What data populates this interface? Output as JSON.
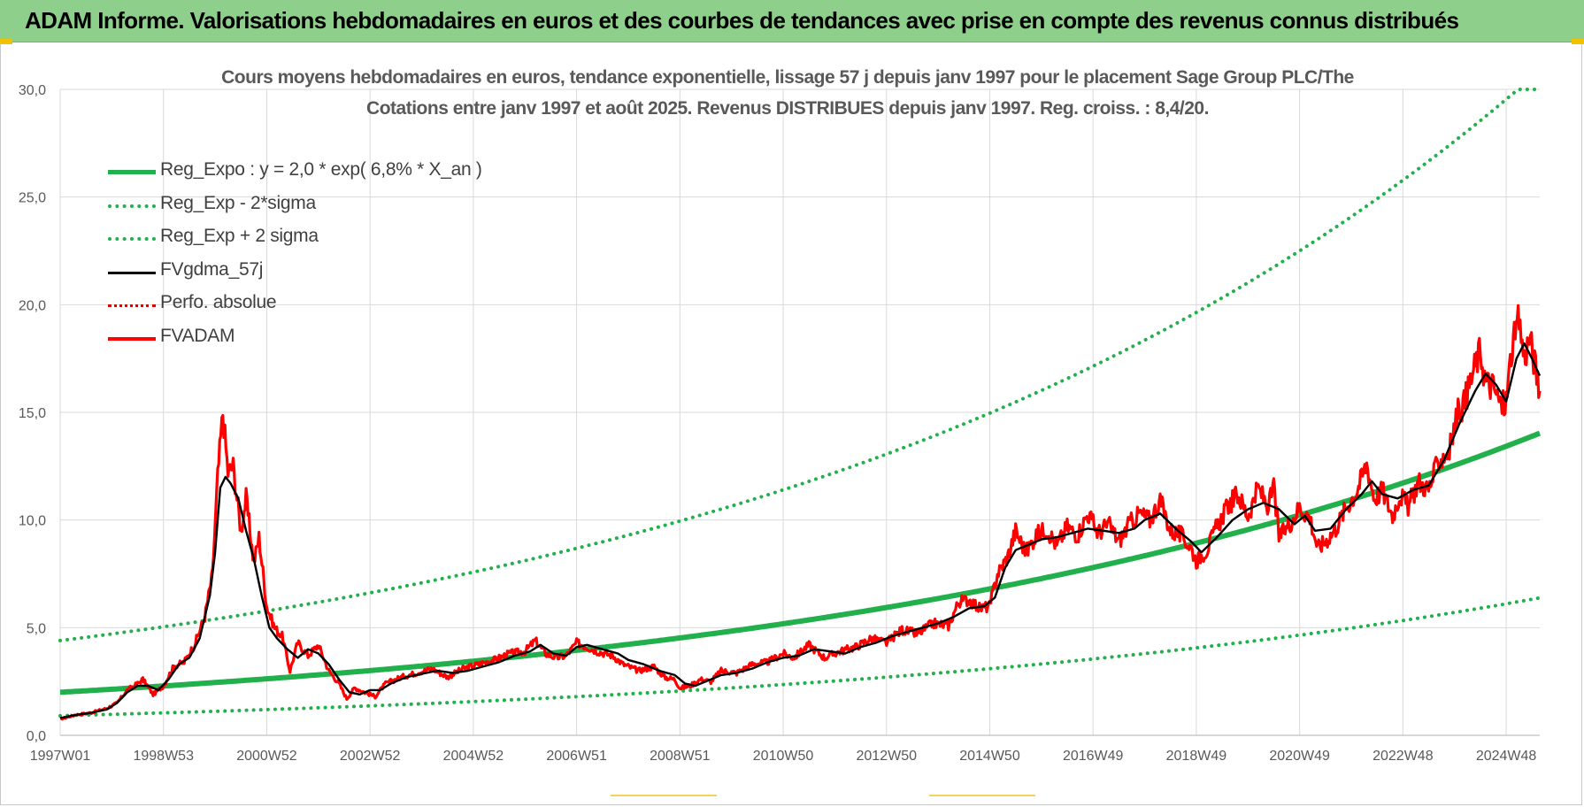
{
  "header": {
    "title": "ADAM Informe. Valorisations hebdomadaires en euros et des courbes de tendances avec prise en compte des revenus connus distribués"
  },
  "colors": {
    "banner": "#8ed08b",
    "trend": "#22b04c",
    "sigma": "#22b04c",
    "fvgdma": "#000000",
    "perfo": "#e00000",
    "fvadam": "#ff0000",
    "grid": "#d9d9d9",
    "axis_text": "#595959"
  },
  "chart_data": {
    "type": "line",
    "title_lines": [
      "Cours moyens hebdomadaires en euros, tendance exponentielle, lissage 57 j depuis janv 1997 pour le placement Sage Group PLC/The",
      "Cotations entre janv 1997 et août 2025.  Revenus DISTRIBUES depuis janv 1997. Reg. croiss. : 8,4/20."
    ],
    "ylim": [
      0,
      30
    ],
    "y_ticks": [
      "0,0",
      "5,0",
      "10,0",
      "15,0",
      "20,0",
      "25,0",
      "30,0"
    ],
    "x_range": [
      1997.0,
      2025.65
    ],
    "x_ticks": [
      {
        "label": "1997W01",
        "x": 1997.0
      },
      {
        "label": "1998W53",
        "x": 1999.0
      },
      {
        "label": "2000W52",
        "x": 2001.0
      },
      {
        "label": "2002W52",
        "x": 2003.0
      },
      {
        "label": "2004W52",
        "x": 2005.0
      },
      {
        "label": "2006W51",
        "x": 2007.0
      },
      {
        "label": "2008W51",
        "x": 2009.0
      },
      {
        "label": "2010W50",
        "x": 2011.0
      },
      {
        "label": "2012W50",
        "x": 2013.0
      },
      {
        "label": "2014W50",
        "x": 2015.0
      },
      {
        "label": "2016W49",
        "x": 2017.0
      },
      {
        "label": "2018W49",
        "x": 2019.0
      },
      {
        "label": "2020W49",
        "x": 2021.0
      },
      {
        "label": "2022W48",
        "x": 2023.0
      },
      {
        "label": "2024W48",
        "x": 2025.0
      }
    ],
    "legend_position": "top-left",
    "series": [
      {
        "name": "Reg_Expo : y = 2,0 * exp( 6,8% *  X_an )",
        "style": "solid-thick",
        "trend": {
          "a": 2.0,
          "rate": 0.068,
          "factor": 1.0
        }
      },
      {
        "name": "Reg_Exp - 2*sigma",
        "style": "dotted",
        "trend": {
          "a": 2.0,
          "rate": 0.068,
          "factor": 0.455
        }
      },
      {
        "name": "Reg_Exp + 2 sigma",
        "style": "dotted",
        "trend": {
          "a": 2.0,
          "rate": 0.068,
          "factor": 2.2
        },
        "clip_max": 30
      },
      {
        "name": "FVgdma_57j",
        "style": "solid",
        "points": [
          [
            1997.0,
            0.8
          ],
          [
            1997.3,
            0.95
          ],
          [
            1997.6,
            1.05
          ],
          [
            1997.9,
            1.2
          ],
          [
            1998.1,
            1.5
          ],
          [
            1998.3,
            2.0
          ],
          [
            1998.5,
            2.3
          ],
          [
            1998.7,
            2.3
          ],
          [
            1998.9,
            2.1
          ],
          [
            1999.1,
            2.6
          ],
          [
            1999.3,
            3.3
          ],
          [
            1999.5,
            3.6
          ],
          [
            1999.7,
            4.5
          ],
          [
            1999.9,
            6.5
          ],
          [
            2000.0,
            8.5
          ],
          [
            2000.1,
            11.5
          ],
          [
            2000.2,
            12.0
          ],
          [
            2000.3,
            11.7
          ],
          [
            2000.45,
            11.0
          ],
          [
            2000.6,
            9.5
          ],
          [
            2000.75,
            8.2
          ],
          [
            2000.9,
            6.5
          ],
          [
            2001.05,
            5.0
          ],
          [
            2001.2,
            4.5
          ],
          [
            2001.4,
            4.0
          ],
          [
            2001.6,
            3.6
          ],
          [
            2001.8,
            4.0
          ],
          [
            2002.0,
            3.8
          ],
          [
            2002.2,
            3.3
          ],
          [
            2002.4,
            2.6
          ],
          [
            2002.6,
            2.0
          ],
          [
            2002.8,
            1.9
          ],
          [
            2003.0,
            2.1
          ],
          [
            2003.2,
            2.1
          ],
          [
            2003.4,
            2.4
          ],
          [
            2003.7,
            2.7
          ],
          [
            2004.0,
            2.85
          ],
          [
            2004.3,
            3.0
          ],
          [
            2004.6,
            2.9
          ],
          [
            2004.9,
            3.0
          ],
          [
            2005.2,
            3.2
          ],
          [
            2005.5,
            3.4
          ],
          [
            2005.8,
            3.7
          ],
          [
            2006.1,
            3.9
          ],
          [
            2006.3,
            4.2
          ],
          [
            2006.55,
            3.8
          ],
          [
            2006.8,
            3.7
          ],
          [
            2007.0,
            4.1
          ],
          [
            2007.2,
            4.2
          ],
          [
            2007.5,
            4.0
          ],
          [
            2007.8,
            3.8
          ],
          [
            2008.0,
            3.5
          ],
          [
            2008.3,
            3.3
          ],
          [
            2008.6,
            3.0
          ],
          [
            2008.9,
            2.8
          ],
          [
            2009.1,
            2.4
          ],
          [
            2009.3,
            2.3
          ],
          [
            2009.5,
            2.5
          ],
          [
            2009.8,
            2.8
          ],
          [
            2010.1,
            2.9
          ],
          [
            2010.4,
            3.1
          ],
          [
            2010.7,
            3.4
          ],
          [
            2011.0,
            3.6
          ],
          [
            2011.3,
            3.7
          ],
          [
            2011.6,
            4.0
          ],
          [
            2011.9,
            3.9
          ],
          [
            2012.2,
            3.8
          ],
          [
            2012.5,
            4.1
          ],
          [
            2012.8,
            4.3
          ],
          [
            2013.1,
            4.6
          ],
          [
            2013.4,
            4.8
          ],
          [
            2013.7,
            5.0
          ],
          [
            2014.0,
            5.2
          ],
          [
            2014.3,
            5.5
          ],
          [
            2014.6,
            5.9
          ],
          [
            2014.9,
            6.0
          ],
          [
            2015.1,
            6.4
          ],
          [
            2015.3,
            7.8
          ],
          [
            2015.5,
            8.6
          ],
          [
            2015.7,
            8.8
          ],
          [
            2016.0,
            9.1
          ],
          [
            2016.3,
            9.2
          ],
          [
            2016.6,
            9.4
          ],
          [
            2016.9,
            9.6
          ],
          [
            2017.2,
            9.5
          ],
          [
            2017.5,
            9.4
          ],
          [
            2017.8,
            9.6
          ],
          [
            2018.0,
            10.0
          ],
          [
            2018.3,
            10.3
          ],
          [
            2018.6,
            9.6
          ],
          [
            2018.9,
            9.0
          ],
          [
            2019.1,
            8.5
          ],
          [
            2019.4,
            9.2
          ],
          [
            2019.7,
            10.0
          ],
          [
            2020.0,
            10.5
          ],
          [
            2020.3,
            10.8
          ],
          [
            2020.6,
            10.5
          ],
          [
            2020.9,
            9.8
          ],
          [
            2021.1,
            10.2
          ],
          [
            2021.3,
            9.5
          ],
          [
            2021.6,
            9.6
          ],
          [
            2021.9,
            10.5
          ],
          [
            2022.2,
            11.2
          ],
          [
            2022.4,
            11.8
          ],
          [
            2022.6,
            11.2
          ],
          [
            2022.9,
            11.0
          ],
          [
            2023.2,
            11.4
          ],
          [
            2023.5,
            11.6
          ],
          [
            2023.8,
            12.8
          ],
          [
            2024.1,
            14.5
          ],
          [
            2024.4,
            16.0
          ],
          [
            2024.6,
            16.8
          ],
          [
            2024.8,
            16.3
          ],
          [
            2025.0,
            15.5
          ],
          [
            2025.2,
            17.5
          ],
          [
            2025.35,
            18.2
          ],
          [
            2025.5,
            17.5
          ],
          [
            2025.65,
            16.7
          ]
        ]
      },
      {
        "name": "Perfo. absolue",
        "style": "dotted"
      },
      {
        "name": "FVADAM",
        "style": "solid-thick",
        "noise": 0.045,
        "points": [
          [
            1997.0,
            0.75
          ],
          [
            1997.3,
            0.95
          ],
          [
            1997.6,
            1.05
          ],
          [
            1997.9,
            1.25
          ],
          [
            1998.1,
            1.5
          ],
          [
            1998.3,
            2.1
          ],
          [
            1998.5,
            2.4
          ],
          [
            1998.6,
            2.6
          ],
          [
            1998.8,
            1.9
          ],
          [
            1999.0,
            2.3
          ],
          [
            1999.2,
            3.2
          ],
          [
            1999.4,
            3.4
          ],
          [
            1999.6,
            4.2
          ],
          [
            1999.8,
            5.5
          ],
          [
            1999.95,
            7.5
          ],
          [
            2000.05,
            12.0
          ],
          [
            2000.15,
            15.0
          ],
          [
            2000.25,
            12.2
          ],
          [
            2000.35,
            12.5
          ],
          [
            2000.5,
            9.5
          ],
          [
            2000.6,
            11.0
          ],
          [
            2000.75,
            8.0
          ],
          [
            2000.85,
            9.2
          ],
          [
            2001.0,
            6.0
          ],
          [
            2001.15,
            5.0
          ],
          [
            2001.3,
            4.6
          ],
          [
            2001.45,
            3.0
          ],
          [
            2001.6,
            4.3
          ],
          [
            2001.8,
            3.7
          ],
          [
            2002.0,
            4.2
          ],
          [
            2002.2,
            3.0
          ],
          [
            2002.4,
            2.4
          ],
          [
            2002.55,
            1.7
          ],
          [
            2002.7,
            2.2
          ],
          [
            2002.9,
            2.0
          ],
          [
            2003.1,
            1.8
          ],
          [
            2003.3,
            2.4
          ],
          [
            2003.6,
            2.7
          ],
          [
            2003.9,
            2.9
          ],
          [
            2004.2,
            3.1
          ],
          [
            2004.5,
            2.7
          ],
          [
            2004.8,
            3.1
          ],
          [
            2005.1,
            3.3
          ],
          [
            2005.4,
            3.5
          ],
          [
            2005.7,
            3.8
          ],
          [
            2006.0,
            3.9
          ],
          [
            2006.2,
            4.4
          ],
          [
            2006.4,
            3.8
          ],
          [
            2006.6,
            3.6
          ],
          [
            2006.8,
            3.7
          ],
          [
            2007.0,
            4.3
          ],
          [
            2007.2,
            4.1
          ],
          [
            2007.4,
            3.9
          ],
          [
            2007.7,
            3.7
          ],
          [
            2007.9,
            3.3
          ],
          [
            2008.2,
            3.0
          ],
          [
            2008.5,
            3.2
          ],
          [
            2008.7,
            2.7
          ],
          [
            2008.9,
            2.6
          ],
          [
            2009.0,
            2.2
          ],
          [
            2009.2,
            2.3
          ],
          [
            2009.4,
            2.6
          ],
          [
            2009.6,
            2.5
          ],
          [
            2009.8,
            3.0
          ],
          [
            2010.1,
            2.9
          ],
          [
            2010.4,
            3.3
          ],
          [
            2010.7,
            3.4
          ],
          [
            2011.0,
            3.8
          ],
          [
            2011.2,
            3.6
          ],
          [
            2011.5,
            4.2
          ],
          [
            2011.8,
            3.6
          ],
          [
            2012.1,
            3.9
          ],
          [
            2012.4,
            4.1
          ],
          [
            2012.7,
            4.5
          ],
          [
            2013.0,
            4.3
          ],
          [
            2013.3,
            4.9
          ],
          [
            2013.6,
            4.7
          ],
          [
            2013.9,
            5.2
          ],
          [
            2014.2,
            5.1
          ],
          [
            2014.4,
            6.2
          ],
          [
            2014.6,
            6.3
          ],
          [
            2014.8,
            5.9
          ],
          [
            2015.0,
            6.0
          ],
          [
            2015.15,
            7.5
          ],
          [
            2015.35,
            8.3
          ],
          [
            2015.5,
            9.5
          ],
          [
            2015.7,
            8.5
          ],
          [
            2015.9,
            9.3
          ],
          [
            2016.1,
            9.6
          ],
          [
            2016.3,
            8.8
          ],
          [
            2016.5,
            9.7
          ],
          [
            2016.7,
            9.3
          ],
          [
            2016.9,
            10.3
          ],
          [
            2017.1,
            9.4
          ],
          [
            2017.3,
            9.8
          ],
          [
            2017.5,
            9.0
          ],
          [
            2017.7,
            9.8
          ],
          [
            2017.9,
            10.3
          ],
          [
            2018.1,
            10.0
          ],
          [
            2018.3,
            10.9
          ],
          [
            2018.5,
            9.5
          ],
          [
            2018.7,
            9.3
          ],
          [
            2018.9,
            8.7
          ],
          [
            2019.0,
            8.1
          ],
          [
            2019.2,
            8.6
          ],
          [
            2019.4,
            9.7
          ],
          [
            2019.6,
            10.6
          ],
          [
            2019.8,
            11.2
          ],
          [
            2020.0,
            10.2
          ],
          [
            2020.2,
            11.5
          ],
          [
            2020.4,
            10.6
          ],
          [
            2020.5,
            11.6
          ],
          [
            2020.6,
            9.2
          ],
          [
            2020.8,
            9.8
          ],
          [
            2021.0,
            10.6
          ],
          [
            2021.2,
            10.1
          ],
          [
            2021.35,
            8.7
          ],
          [
            2021.5,
            9.0
          ],
          [
            2021.7,
            9.6
          ],
          [
            2021.9,
            10.6
          ],
          [
            2022.1,
            11.3
          ],
          [
            2022.3,
            12.6
          ],
          [
            2022.45,
            11.0
          ],
          [
            2022.6,
            11.4
          ],
          [
            2022.8,
            10.2
          ],
          [
            2022.95,
            11.2
          ],
          [
            2023.1,
            10.6
          ],
          [
            2023.3,
            11.8
          ],
          [
            2023.5,
            11.4
          ],
          [
            2023.7,
            12.8
          ],
          [
            2023.9,
            13.2
          ],
          [
            2024.05,
            14.9
          ],
          [
            2024.2,
            15.5
          ],
          [
            2024.35,
            16.8
          ],
          [
            2024.5,
            17.9
          ],
          [
            2024.6,
            16.4
          ],
          [
            2024.75,
            16.2
          ],
          [
            2024.9,
            15.3
          ],
          [
            2025.0,
            15.5
          ],
          [
            2025.1,
            17.8
          ],
          [
            2025.25,
            19.3
          ],
          [
            2025.35,
            17.5
          ],
          [
            2025.45,
            18.5
          ],
          [
            2025.55,
            17.3
          ],
          [
            2025.65,
            16.0
          ]
        ]
      }
    ]
  }
}
